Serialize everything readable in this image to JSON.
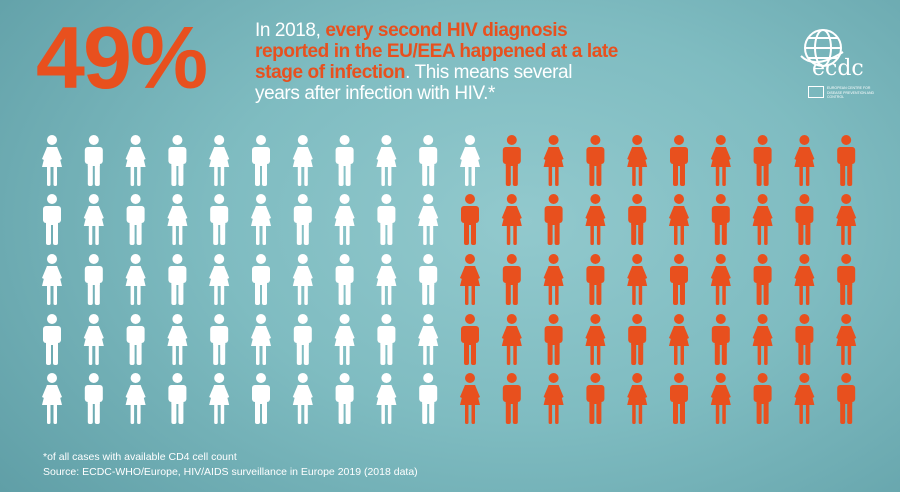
{
  "headline_number": "49%",
  "headline": {
    "lines": [
      [
        {
          "text": "In 2018, ",
          "highlight": false
        },
        {
          "text": "every second HIV diagnosis",
          "highlight": true
        }
      ],
      [
        {
          "text": "reported in the EU/EEA happened at a late",
          "highlight": true
        }
      ],
      [
        {
          "text": "stage of infection",
          "highlight": true
        },
        {
          "text": ". This means several",
          "highlight": false
        }
      ],
      [
        {
          "text": "years after infection with HIV.*",
          "highlight": false
        }
      ]
    ]
  },
  "logo": {
    "wordmark": "ecdc",
    "subtitle": "EUROPEAN CENTRE FOR DISEASE PREVENTION AND CONTROL"
  },
  "pictogram": {
    "total": 100,
    "highlighted": 49,
    "colors": {
      "base": "#ffffff",
      "highlight": "#e8501e"
    },
    "icons": [
      "female-figure",
      "male-figure"
    ]
  },
  "footnote": "*of all cases with available CD4 cell count",
  "source": "Source: ECDC-WHO/Europe, HIV/AIDS surveillance in Europe 2019 (2018 data)"
}
